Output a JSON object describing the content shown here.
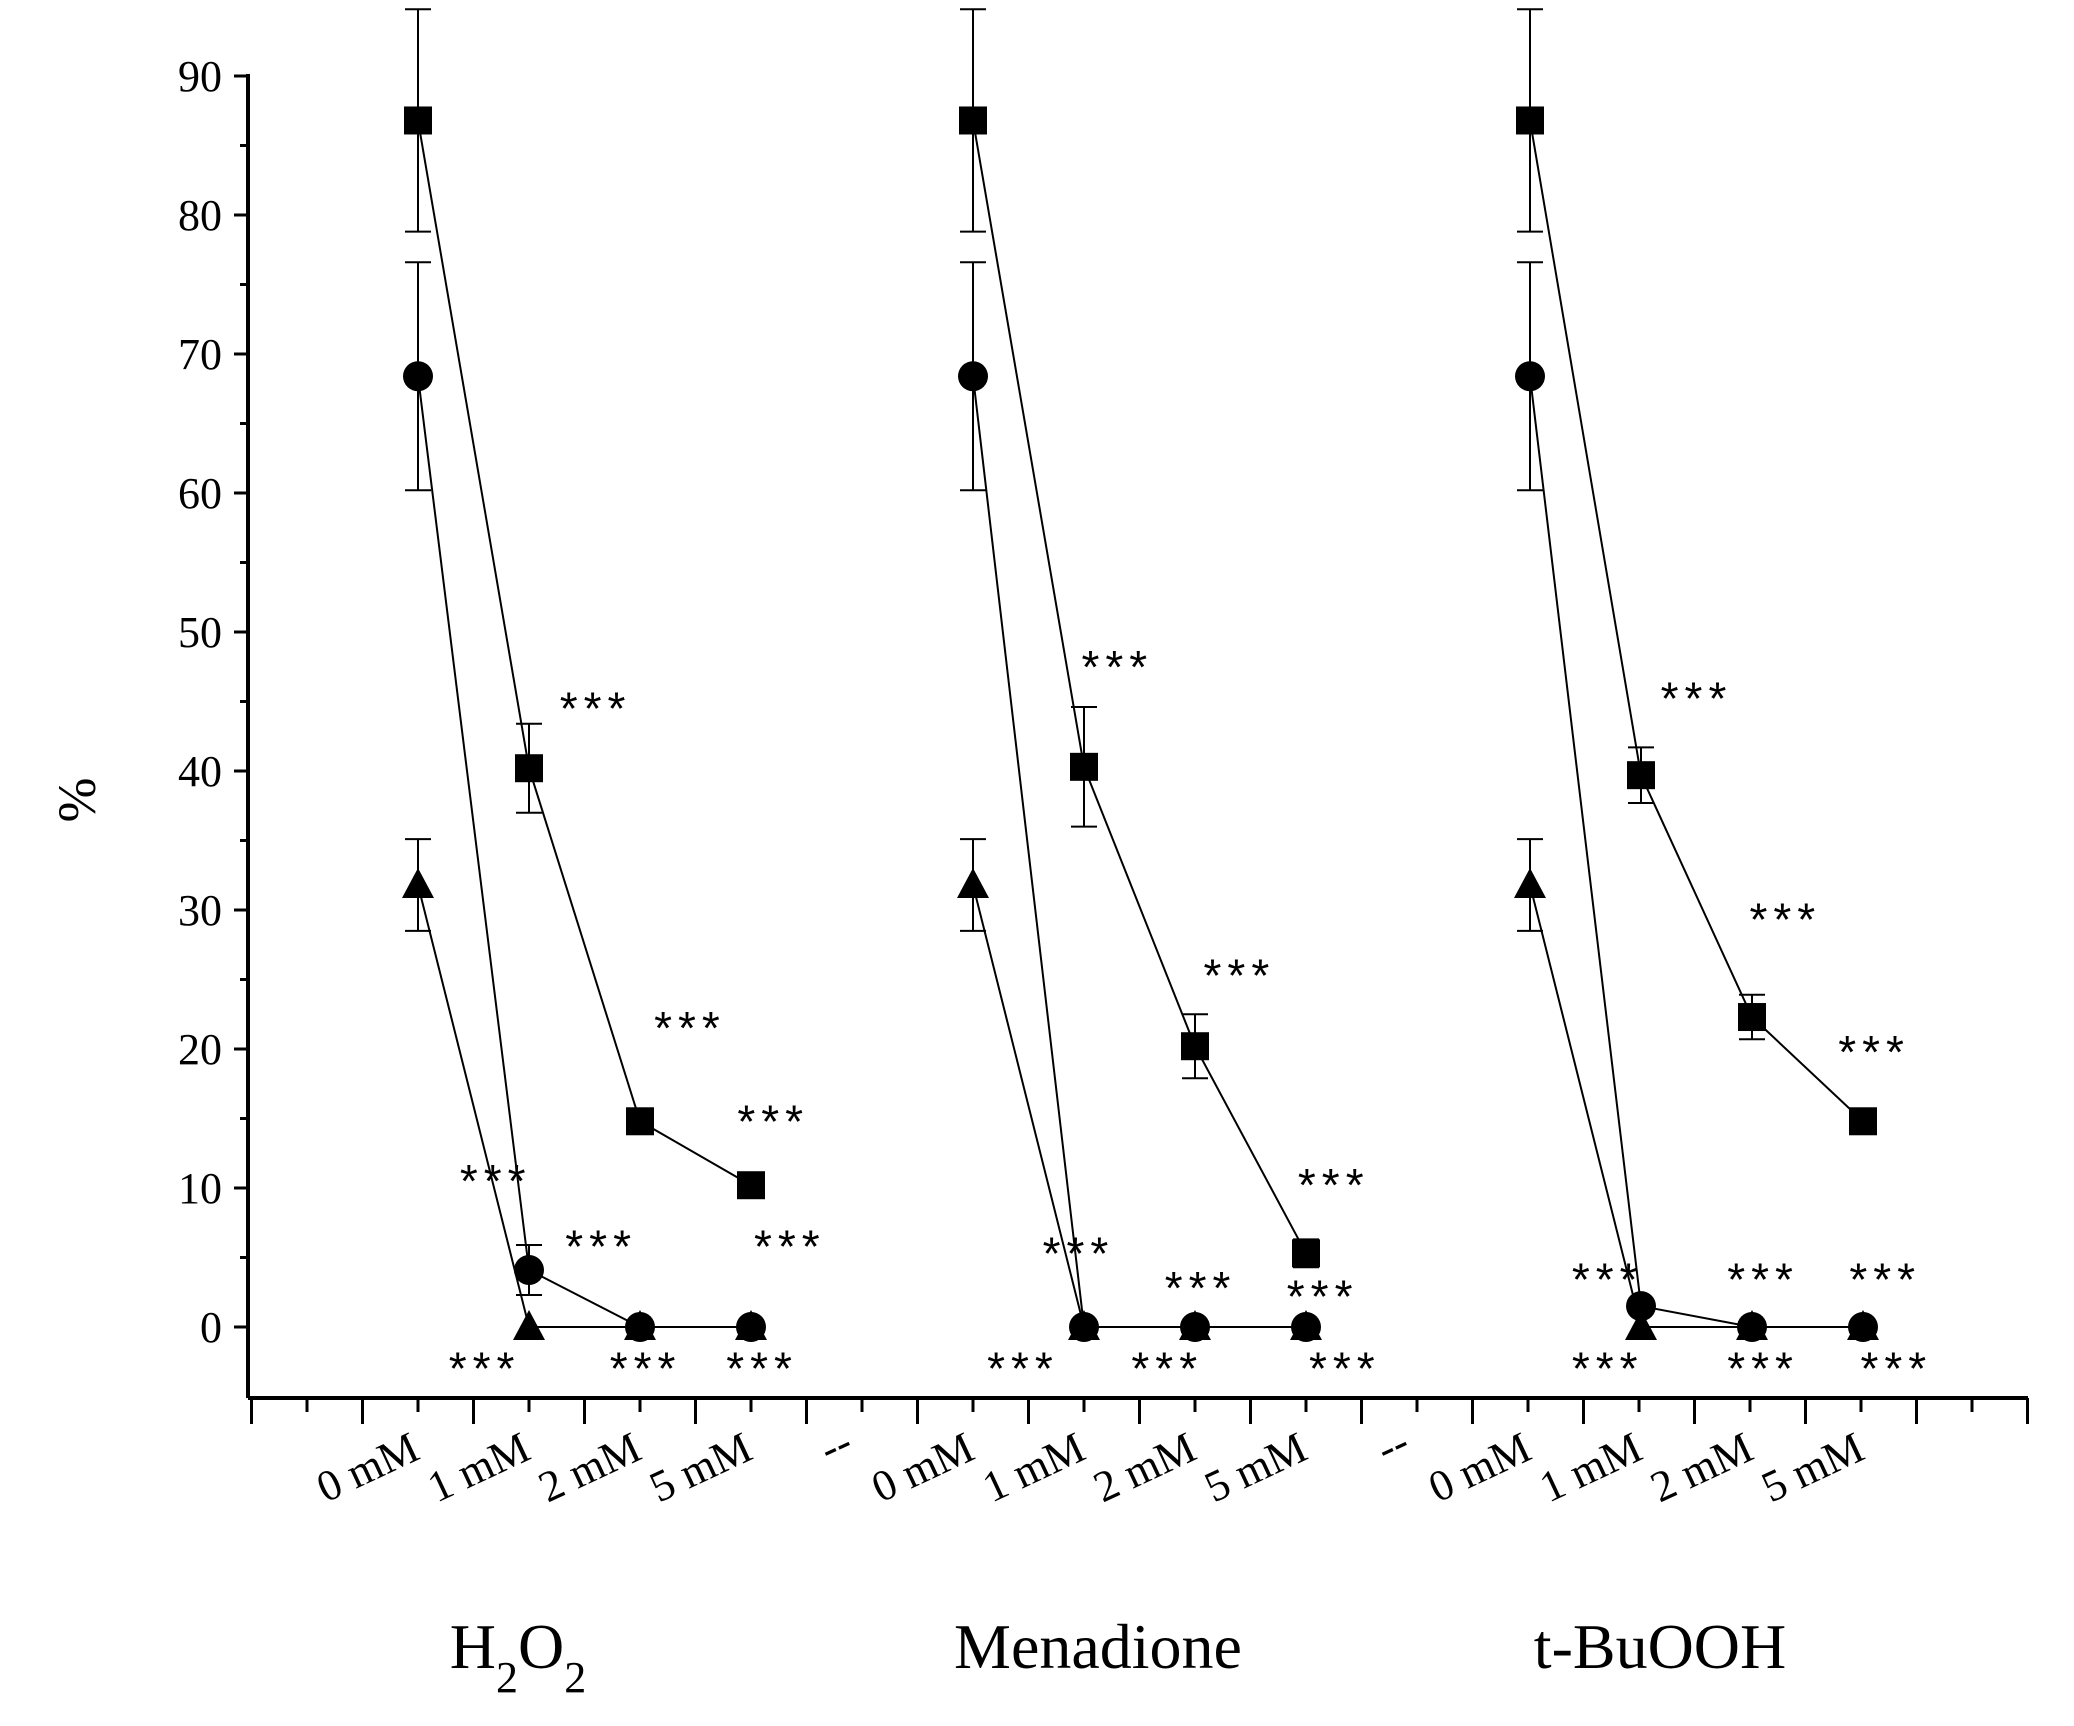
{
  "chart_data": {
    "type": "line",
    "title": "",
    "ylabel": "%",
    "ylim": [
      -5,
      90
    ],
    "yticks": [
      0,
      10,
      20,
      30,
      40,
      50,
      60,
      70,
      80,
      90
    ],
    "groups": [
      {
        "name": "H2O2",
        "base": "H",
        "sub1": "2",
        "mid": "O",
        "sub2": "2",
        "label": "H2O2"
      },
      {
        "name": "Menadione",
        "label": "Menadione"
      },
      {
        "name": "t-BuOOH",
        "label": "t-BuOOH"
      }
    ],
    "categories": [
      "0 mM",
      "1 mM",
      "2 mM",
      "5 mM"
    ],
    "separator_label": "--",
    "series": [
      {
        "name": "square",
        "marker": "square",
        "values": [
          [
            86.8,
            40.2,
            14.8,
            10.2
          ],
          [
            86.8,
            40.3,
            20.2,
            5.3
          ],
          [
            86.8,
            39.7,
            22.3,
            14.8
          ]
        ],
        "errors": [
          [
            8.0,
            3.2,
            0,
            0
          ],
          [
            8.0,
            4.3,
            2.3,
            1.0
          ],
          [
            8.0,
            2.0,
            1.6,
            0
          ]
        ]
      },
      {
        "name": "circle",
        "marker": "circle",
        "values": [
          [
            68.4,
            4.1,
            0,
            0
          ],
          [
            68.4,
            0,
            0,
            0
          ],
          [
            68.4,
            1.5,
            0,
            0
          ]
        ],
        "errors": [
          [
            8.2,
            1.8,
            0,
            0
          ],
          [
            8.2,
            0,
            0,
            0
          ],
          [
            8.2,
            0,
            0,
            0
          ]
        ]
      },
      {
        "name": "triangle",
        "marker": "triangle",
        "values": [
          [
            31.8,
            0,
            0,
            0
          ],
          [
            31.8,
            0,
            0,
            0
          ],
          [
            31.8,
            0,
            0,
            0
          ]
        ],
        "errors": [
          [
            3.3,
            0,
            0,
            0
          ],
          [
            3.3,
            0,
            0,
            0
          ],
          [
            3.3,
            0,
            0,
            0
          ]
        ]
      }
    ],
    "significance_label": "***",
    "annotations": [
      {
        "group": 0,
        "cat": 1,
        "y": 44.5,
        "dx": 0.6,
        "text": "***"
      },
      {
        "group": 0,
        "cat": 2,
        "y": 21.5,
        "dx": 0.45,
        "text": "***"
      },
      {
        "group": 0,
        "cat": 3,
        "y": 14.8,
        "dx": 0.2,
        "text": "***"
      },
      {
        "group": 0,
        "cat": 1,
        "y": 10.5,
        "dx": -0.3,
        "text": "***"
      },
      {
        "group": 0,
        "cat": 2,
        "y": 5.8,
        "dx": -0.35,
        "text": "***"
      },
      {
        "group": 0,
        "cat": 3,
        "y": 5.8,
        "dx": 0.35,
        "text": "***"
      },
      {
        "group": 0,
        "cat": 1,
        "y": -3.0,
        "dx": -0.4,
        "text": "***"
      },
      {
        "group": 0,
        "cat": 2,
        "y": -3.0,
        "dx": 0.05,
        "text": "***"
      },
      {
        "group": 0,
        "cat": 3,
        "y": -3.0,
        "dx": 0.1,
        "text": "***"
      },
      {
        "group": 1,
        "cat": 1,
        "y": 47.5,
        "dx": 0.3,
        "text": "***"
      },
      {
        "group": 1,
        "cat": 2,
        "y": 25.3,
        "dx": 0.4,
        "text": "***"
      },
      {
        "group": 1,
        "cat": 3,
        "y": 10.2,
        "dx": 0.25,
        "text": "***"
      },
      {
        "group": 1,
        "cat": 1,
        "y": 5.3,
        "dx": -0.05,
        "text": "***"
      },
      {
        "group": 1,
        "cat": 2,
        "y": 2.8,
        "dx": 0.05,
        "text": "***"
      },
      {
        "group": 1,
        "cat": 3,
        "y": 2.2,
        "dx": 0.15,
        "text": "***"
      },
      {
        "group": 1,
        "cat": 1,
        "y": -3.0,
        "dx": -0.55,
        "text": "***"
      },
      {
        "group": 1,
        "cat": 2,
        "y": -3.0,
        "dx": -0.25,
        "text": "***"
      },
      {
        "group": 1,
        "cat": 3,
        "y": -3.0,
        "dx": 0.35,
        "text": "***"
      },
      {
        "group": 2,
        "cat": 1,
        "y": 45.2,
        "dx": 0.5,
        "text": "***"
      },
      {
        "group": 2,
        "cat": 2,
        "y": 29.3,
        "dx": 0.3,
        "text": "***"
      },
      {
        "group": 2,
        "cat": 3,
        "y": 19.8,
        "dx": 0.1,
        "text": "***"
      },
      {
        "group": 2,
        "cat": 1,
        "y": 3.4,
        "dx": -0.3,
        "text": "***"
      },
      {
        "group": 2,
        "cat": 2,
        "y": 3.4,
        "dx": 0.1,
        "text": "***"
      },
      {
        "group": 2,
        "cat": 3,
        "y": 3.4,
        "dx": 0.2,
        "text": "***"
      },
      {
        "group": 2,
        "cat": 1,
        "y": -3.0,
        "dx": -0.3,
        "text": "***"
      },
      {
        "group": 2,
        "cat": 2,
        "y": -3.0,
        "dx": 0.1,
        "text": "***"
      },
      {
        "group": 2,
        "cat": 3,
        "y": -3.0,
        "dx": 0.3,
        "text": "***"
      }
    ]
  }
}
